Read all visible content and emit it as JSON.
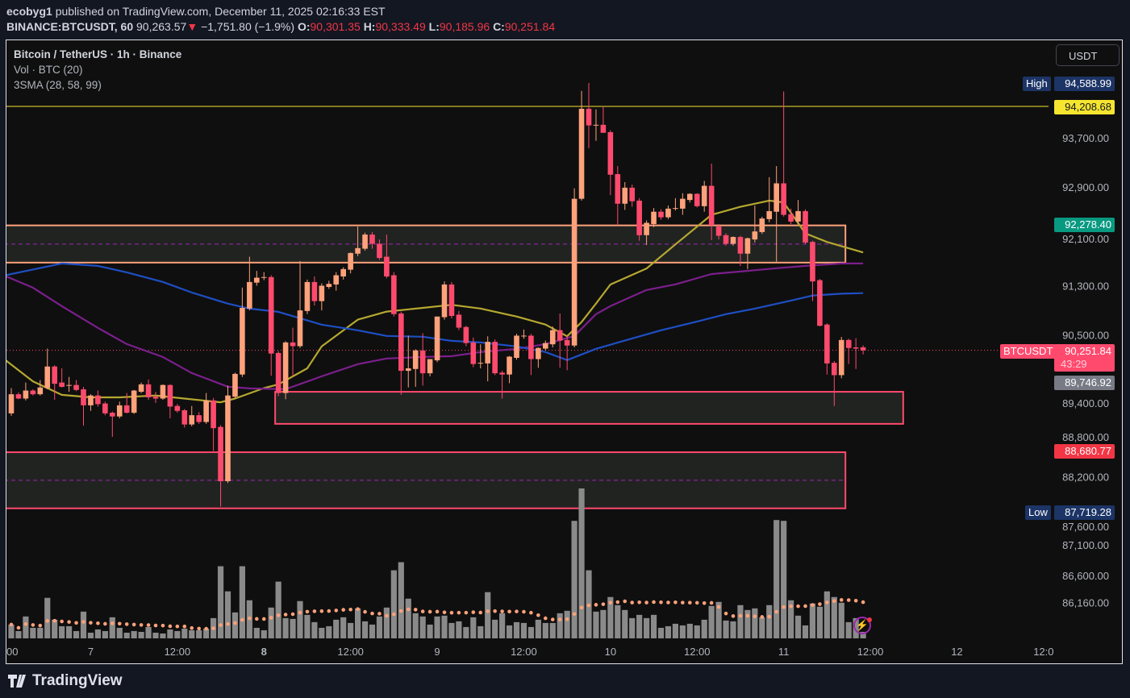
{
  "header": {
    "author": "ecobyg1",
    "published": " published on TradingView.com, December 11, 2025 02:16:33 EST",
    "symbol": "BINANCE:BTCUSDT, 60",
    "last": "90,263.57",
    "change": "−1,751.80 (−1.9%)",
    "o_label": "O:",
    "o": "90,301.35",
    "h_label": "H:",
    "h": "90,333.49",
    "l_label": "L:",
    "l": "90,185.96",
    "c_label": "C:",
    "c": "90,251.84"
  },
  "legend": {
    "title": "Bitcoin / TetherUS · 1h · Binance",
    "volume": "Vol · BTC (20)",
    "sma": "3SMA (28, 58, 99)"
  },
  "currency_button": "USDT",
  "price_tags": {
    "high_label": "High",
    "high": "94,588.99",
    "resistance": "94,208.68",
    "zone_top": "92,278.40",
    "symbol": "BTCUSDT",
    "last": "90,251.84",
    "countdown": "43:29",
    "support": "89,746.92",
    "zone_low": "88,680.77",
    "low_label": "Low",
    "low": "87,719.28"
  },
  "footer": {
    "brand": "TradingView"
  },
  "colors": {
    "bull": "#ffa27b",
    "bear": "#ff4a6e",
    "sma28": "#b5a830",
    "sma58": "#7b1f8c",
    "sma99": "#1e4fc4",
    "resistance_line": "#f5e52f",
    "zone_orange": "#ffa27b",
    "zone_pink": "#ff4a6e",
    "volume": "#8a8a8a",
    "volume_ma": "#ffa27b",
    "tag_high_low": "#1c3466",
    "tag_resistance": "#f5e52f",
    "tag_zone_top": "#089981",
    "tag_last": "#ff4a6e",
    "tag_support": "#787b86",
    "tag_zone_low": "#f23645"
  },
  "icons": {
    "alert": "lightning-bolt-icon",
    "logo": "tradingview-logo-icon",
    "change": "triangle-down-icon"
  },
  "chart_data": {
    "type": "candlestick",
    "title": "Bitcoin / TetherUS · 1h · Binance",
    "ylim": [
      85150,
      95280
    ],
    "grid": false,
    "y_ticks": [
      93700,
      92900,
      92100,
      91300,
      90500,
      89400,
      88800,
      88200,
      87600,
      87100,
      86600,
      86160
    ],
    "x_ticks": [
      {
        "label": "00",
        "bar": -1
      },
      {
        "label": "7",
        "bar": 11
      },
      {
        "label": "12:00",
        "bar": 23
      },
      {
        "label": "8",
        "bar": 35,
        "bold": true
      },
      {
        "label": "12:00",
        "bar": 47
      },
      {
        "label": "9",
        "bar": 59
      },
      {
        "label": "12:00",
        "bar": 71
      },
      {
        "label": "10",
        "bar": 83
      },
      {
        "label": "12:00",
        "bar": 95
      },
      {
        "label": "11",
        "bar": 107
      },
      {
        "label": "12:00",
        "bar": 119
      },
      {
        "label": "12",
        "bar": 131
      },
      {
        "label": "12:0",
        "bar": 143
      }
    ],
    "candles_ohlc": [
      [
        89230,
        89640,
        89190,
        89540
      ],
      [
        89540,
        89570,
        89460,
        89470
      ],
      [
        89470,
        89730,
        89440,
        89600
      ],
      [
        89600,
        89620,
        89520,
        89540
      ],
      [
        89540,
        89770,
        89520,
        89650
      ],
      [
        89640,
        90280,
        89620,
        89990
      ],
      [
        89990,
        90010,
        89450,
        89710
      ],
      [
        89730,
        89960,
        89650,
        89660
      ],
      [
        89690,
        89820,
        89580,
        89690
      ],
      [
        89690,
        89770,
        89590,
        89610
      ],
      [
        89620,
        89660,
        89030,
        89360
      ],
      [
        89360,
        89540,
        89270,
        89520
      ],
      [
        89520,
        89600,
        89340,
        89380
      ],
      [
        89390,
        89420,
        89200,
        89230
      ],
      [
        89240,
        89260,
        88850,
        89180
      ],
      [
        89180,
        89420,
        89150,
        89360
      ],
      [
        89360,
        89560,
        89230,
        89240
      ],
      [
        89240,
        89610,
        89220,
        89600
      ],
      [
        89580,
        89730,
        89560,
        89700
      ],
      [
        89700,
        89780,
        89450,
        89490
      ],
      [
        89500,
        89580,
        89400,
        89470
      ],
      [
        89470,
        89700,
        89450,
        89690
      ],
      [
        89690,
        89700,
        89150,
        89340
      ],
      [
        89350,
        89380,
        89240,
        89270
      ],
      [
        89280,
        89300,
        89000,
        89050
      ],
      [
        89050,
        89350,
        89020,
        89200
      ],
      [
        89200,
        89250,
        89060,
        89090
      ],
      [
        89090,
        89560,
        89060,
        89440
      ],
      [
        89440,
        89480,
        88620,
        88990
      ],
      [
        89010,
        89040,
        87719,
        88130
      ],
      [
        88130,
        89680,
        88100,
        89520
      ],
      [
        89500,
        89890,
        89480,
        89870
      ],
      [
        89860,
        91270,
        89820,
        90940
      ],
      [
        90930,
        91770,
        90900,
        91360
      ],
      [
        91350,
        91540,
        91300,
        91430
      ],
      [
        91440,
        91520,
        91390,
        91440
      ],
      [
        91440,
        91470,
        89840,
        90200
      ],
      [
        90210,
        90240,
        89510,
        89560
      ],
      [
        89560,
        90400,
        89460,
        90380
      ],
      [
        90380,
        90620,
        89830,
        90320
      ],
      [
        90320,
        91700,
        90290,
        90900
      ],
      [
        90890,
        91400,
        90840,
        91360
      ],
      [
        91360,
        91450,
        90980,
        91050
      ],
      [
        91050,
        91340,
        90900,
        91300
      ],
      [
        91280,
        91380,
        91250,
        91330
      ],
      [
        91320,
        91520,
        91220,
        91470
      ],
      [
        91450,
        91600,
        91400,
        91570
      ],
      [
        91560,
        91840,
        91500,
        91830
      ],
      [
        91820,
        92260,
        91780,
        91910
      ],
      [
        91900,
        92160,
        91870,
        92130
      ],
      [
        92130,
        92170,
        91900,
        91980
      ],
      [
        91980,
        92050,
        91720,
        91750
      ],
      [
        91770,
        92130,
        91420,
        91450
      ],
      [
        91470,
        91520,
        90800,
        90840
      ],
      [
        90850,
        90880,
        89530,
        89920
      ],
      [
        89920,
        90490,
        89650,
        89960
      ],
      [
        89950,
        90270,
        89660,
        90250
      ],
      [
        90250,
        90530,
        89680,
        89880
      ],
      [
        89880,
        90110,
        89830,
        90110
      ],
      [
        90090,
        90800,
        90060,
        90800
      ],
      [
        90790,
        91370,
        90750,
        91320
      ],
      [
        91320,
        91360,
        90770,
        90810
      ],
      [
        90830,
        90890,
        90580,
        90620
      ],
      [
        90630,
        90650,
        90320,
        90370
      ],
      [
        90380,
        90460,
        89980,
        90030
      ],
      [
        90050,
        90350,
        89960,
        90050
      ],
      [
        90040,
        90480,
        89750,
        90390
      ],
      [
        90390,
        90430,
        89850,
        89880
      ],
      [
        89890,
        89920,
        89470,
        89860
      ],
      [
        89860,
        90160,
        89720,
        90150
      ],
      [
        90130,
        90520,
        90100,
        90490
      ],
      [
        90490,
        90590,
        90440,
        90490
      ],
      [
        90490,
        90520,
        89850,
        90110
      ],
      [
        90110,
        90300,
        89970,
        90290
      ],
      [
        90280,
        90410,
        90250,
        90370
      ],
      [
        90350,
        90640,
        90300,
        90580
      ],
      [
        90580,
        90850,
        89970,
        90410
      ],
      [
        90420,
        90490,
        89930,
        90330
      ],
      [
        90330,
        92880,
        90300,
        92710
      ],
      [
        92710,
        94460,
        92680,
        94170
      ],
      [
        94170,
        94589,
        93530,
        93900
      ],
      [
        93910,
        94160,
        93650,
        93910
      ],
      [
        93910,
        94210,
        93780,
        93780
      ],
      [
        93790,
        93820,
        92770,
        93100
      ],
      [
        93110,
        93240,
        92280,
        92630
      ],
      [
        92630,
        92980,
        92530,
        92890
      ],
      [
        92890,
        92940,
        92580,
        92670
      ],
      [
        92680,
        92720,
        92030,
        92120
      ],
      [
        92120,
        92360,
        91960,
        92320
      ],
      [
        92300,
        92560,
        92250,
        92500
      ],
      [
        92500,
        92540,
        92370,
        92410
      ],
      [
        92410,
        92600,
        92380,
        92550
      ],
      [
        92560,
        92720,
        92520,
        92560
      ],
      [
        92550,
        92800,
        92450,
        92710
      ],
      [
        92690,
        92800,
        92650,
        92790
      ],
      [
        92790,
        92800,
        92570,
        92590
      ],
      [
        92590,
        93000,
        92500,
        92920
      ],
      [
        92920,
        93280,
        92040,
        92280
      ],
      [
        92260,
        92300,
        92050,
        92110
      ],
      [
        92120,
        92150,
        91950,
        91980
      ],
      [
        91980,
        92100,
        91950,
        92090
      ],
      [
        92090,
        92110,
        91620,
        91820
      ],
      [
        91820,
        92080,
        91570,
        92070
      ],
      [
        92050,
        92600,
        92000,
        92180
      ],
      [
        92170,
        92420,
        92140,
        92390
      ],
      [
        92380,
        93060,
        92330,
        92510
      ],
      [
        92500,
        93240,
        91690,
        92960
      ],
      [
        92960,
        94450,
        92420,
        92450
      ],
      [
        92460,
        92550,
        92300,
        92340
      ],
      [
        92340,
        92690,
        92300,
        92510
      ],
      [
        92510,
        92540,
        91980,
        92000
      ],
      [
        92010,
        92030,
        91050,
        91370
      ],
      [
        91390,
        91410,
        90640,
        90650
      ],
      [
        90670,
        90690,
        89860,
        90040
      ],
      [
        90050,
        90080,
        89350,
        89850
      ],
      [
        89850,
        90470,
        89800,
        90420
      ],
      [
        90420,
        90440,
        90030,
        90290
      ],
      [
        90300,
        90450,
        89950,
        90280
      ],
      [
        90301.35,
        90333.49,
        90185.96,
        90251.84
      ]
    ],
    "volume_relative": [
      17,
      9,
      27,
      13,
      13,
      50,
      23,
      15,
      15,
      9,
      33,
      7,
      11,
      9,
      26,
      13,
      7,
      9,
      8,
      14,
      7,
      6,
      11,
      9,
      12,
      10,
      10,
      12,
      25,
      89,
      58,
      32,
      89,
      47,
      13,
      10,
      38,
      70,
      25,
      24,
      46,
      29,
      20,
      13,
      15,
      23,
      26,
      19,
      37,
      21,
      17,
      27,
      38,
      84,
      94,
      49,
      31,
      27,
      17,
      27,
      28,
      19,
      21,
      14,
      26,
      15,
      57,
      23,
      31,
      16,
      20,
      19,
      14,
      23,
      19,
      19,
      31,
      34,
      145,
      185,
      84,
      33,
      35,
      51,
      41,
      35,
      25,
      29,
      25,
      29,
      13,
      15,
      18,
      16,
      18,
      16,
      23,
      40,
      45,
      22,
      21,
      41,
      35,
      37,
      26,
      41,
      146,
      145,
      47,
      28,
      16,
      43,
      39,
      58,
      51,
      44,
      20,
      25,
      8
    ],
    "volume_ma_period": 20,
    "sma_28": [
      [
        -1,
        90110
      ],
      [
        3,
        89750
      ],
      [
        7,
        89530
      ],
      [
        11,
        89490
      ],
      [
        15,
        89490
      ],
      [
        20,
        89520
      ],
      [
        24,
        89470
      ],
      [
        29,
        89410
      ],
      [
        31,
        89470
      ],
      [
        35,
        89640
      ],
      [
        37,
        89700
      ],
      [
        41,
        89960
      ],
      [
        43,
        90315
      ],
      [
        48,
        90750
      ],
      [
        52,
        90880
      ],
      [
        57,
        90940
      ],
      [
        61,
        90990
      ],
      [
        65,
        90930
      ],
      [
        70,
        90800
      ],
      [
        74,
        90670
      ],
      [
        77,
        90480
      ],
      [
        79,
        90710
      ],
      [
        81,
        91010
      ],
      [
        83,
        91320
      ],
      [
        88,
        91580
      ],
      [
        92,
        91970
      ],
      [
        97,
        92450
      ],
      [
        101,
        92580
      ],
      [
        105,
        92680
      ],
      [
        107,
        92650
      ],
      [
        110,
        92150
      ],
      [
        113,
        92010
      ],
      [
        118,
        91840
      ]
    ],
    "sma_58": [
      [
        -1,
        91465
      ],
      [
        3,
        91269
      ],
      [
        7,
        90969
      ],
      [
        12,
        90616
      ],
      [
        16,
        90354
      ],
      [
        21,
        90145
      ],
      [
        25,
        89884
      ],
      [
        30,
        89662
      ],
      [
        33,
        89635
      ],
      [
        38,
        89622
      ],
      [
        43,
        89831
      ],
      [
        48,
        90028
      ],
      [
        52,
        90119
      ],
      [
        57,
        90145
      ],
      [
        61,
        90158
      ],
      [
        65,
        90224
      ],
      [
        70,
        90276
      ],
      [
        74,
        90354
      ],
      [
        78,
        90485
      ],
      [
        81,
        90838
      ],
      [
        83,
        90969
      ],
      [
        88,
        91230
      ],
      [
        92,
        91322
      ],
      [
        97,
        91490
      ],
      [
        101,
        91530
      ],
      [
        106,
        91583
      ],
      [
        110,
        91622
      ],
      [
        115,
        91661
      ],
      [
        118,
        91661
      ]
    ],
    "sma_99": [
      [
        -1,
        91465
      ],
      [
        7,
        91661
      ],
      [
        12,
        91622
      ],
      [
        16,
        91517
      ],
      [
        21,
        91361
      ],
      [
        25,
        91190
      ],
      [
        30,
        91010
      ],
      [
        33,
        90929
      ],
      [
        37,
        90877
      ],
      [
        43,
        90668
      ],
      [
        48,
        90577
      ],
      [
        52,
        90485
      ],
      [
        57,
        90472
      ],
      [
        61,
        90406
      ],
      [
        65,
        90380
      ],
      [
        70,
        90315
      ],
      [
        74,
        90224
      ],
      [
        77,
        90093
      ],
      [
        81,
        90276
      ],
      [
        86,
        90445
      ],
      [
        90,
        90577
      ],
      [
        95,
        90720
      ],
      [
        99,
        90838
      ],
      [
        103,
        90929
      ],
      [
        108,
        91060
      ],
      [
        111,
        91140
      ],
      [
        115,
        91170
      ],
      [
        118,
        91180
      ]
    ],
    "levels": {
      "resistance": 94208.68,
      "last_price": 90251.84
    },
    "zones": [
      {
        "top": 92278.4,
        "bottom": 91675,
        "mid": 91975,
        "from_bar": -1,
        "to_bar": 116,
        "color": "orange"
      },
      {
        "top": 89580,
        "bottom": 89060,
        "from_bar": 37,
        "to_bar": 124,
        "color": "pink"
      },
      {
        "top": 88600,
        "bottom": 87690,
        "mid": 88145,
        "from_bar": -1,
        "to_bar": 116,
        "color": "pink"
      }
    ]
  }
}
